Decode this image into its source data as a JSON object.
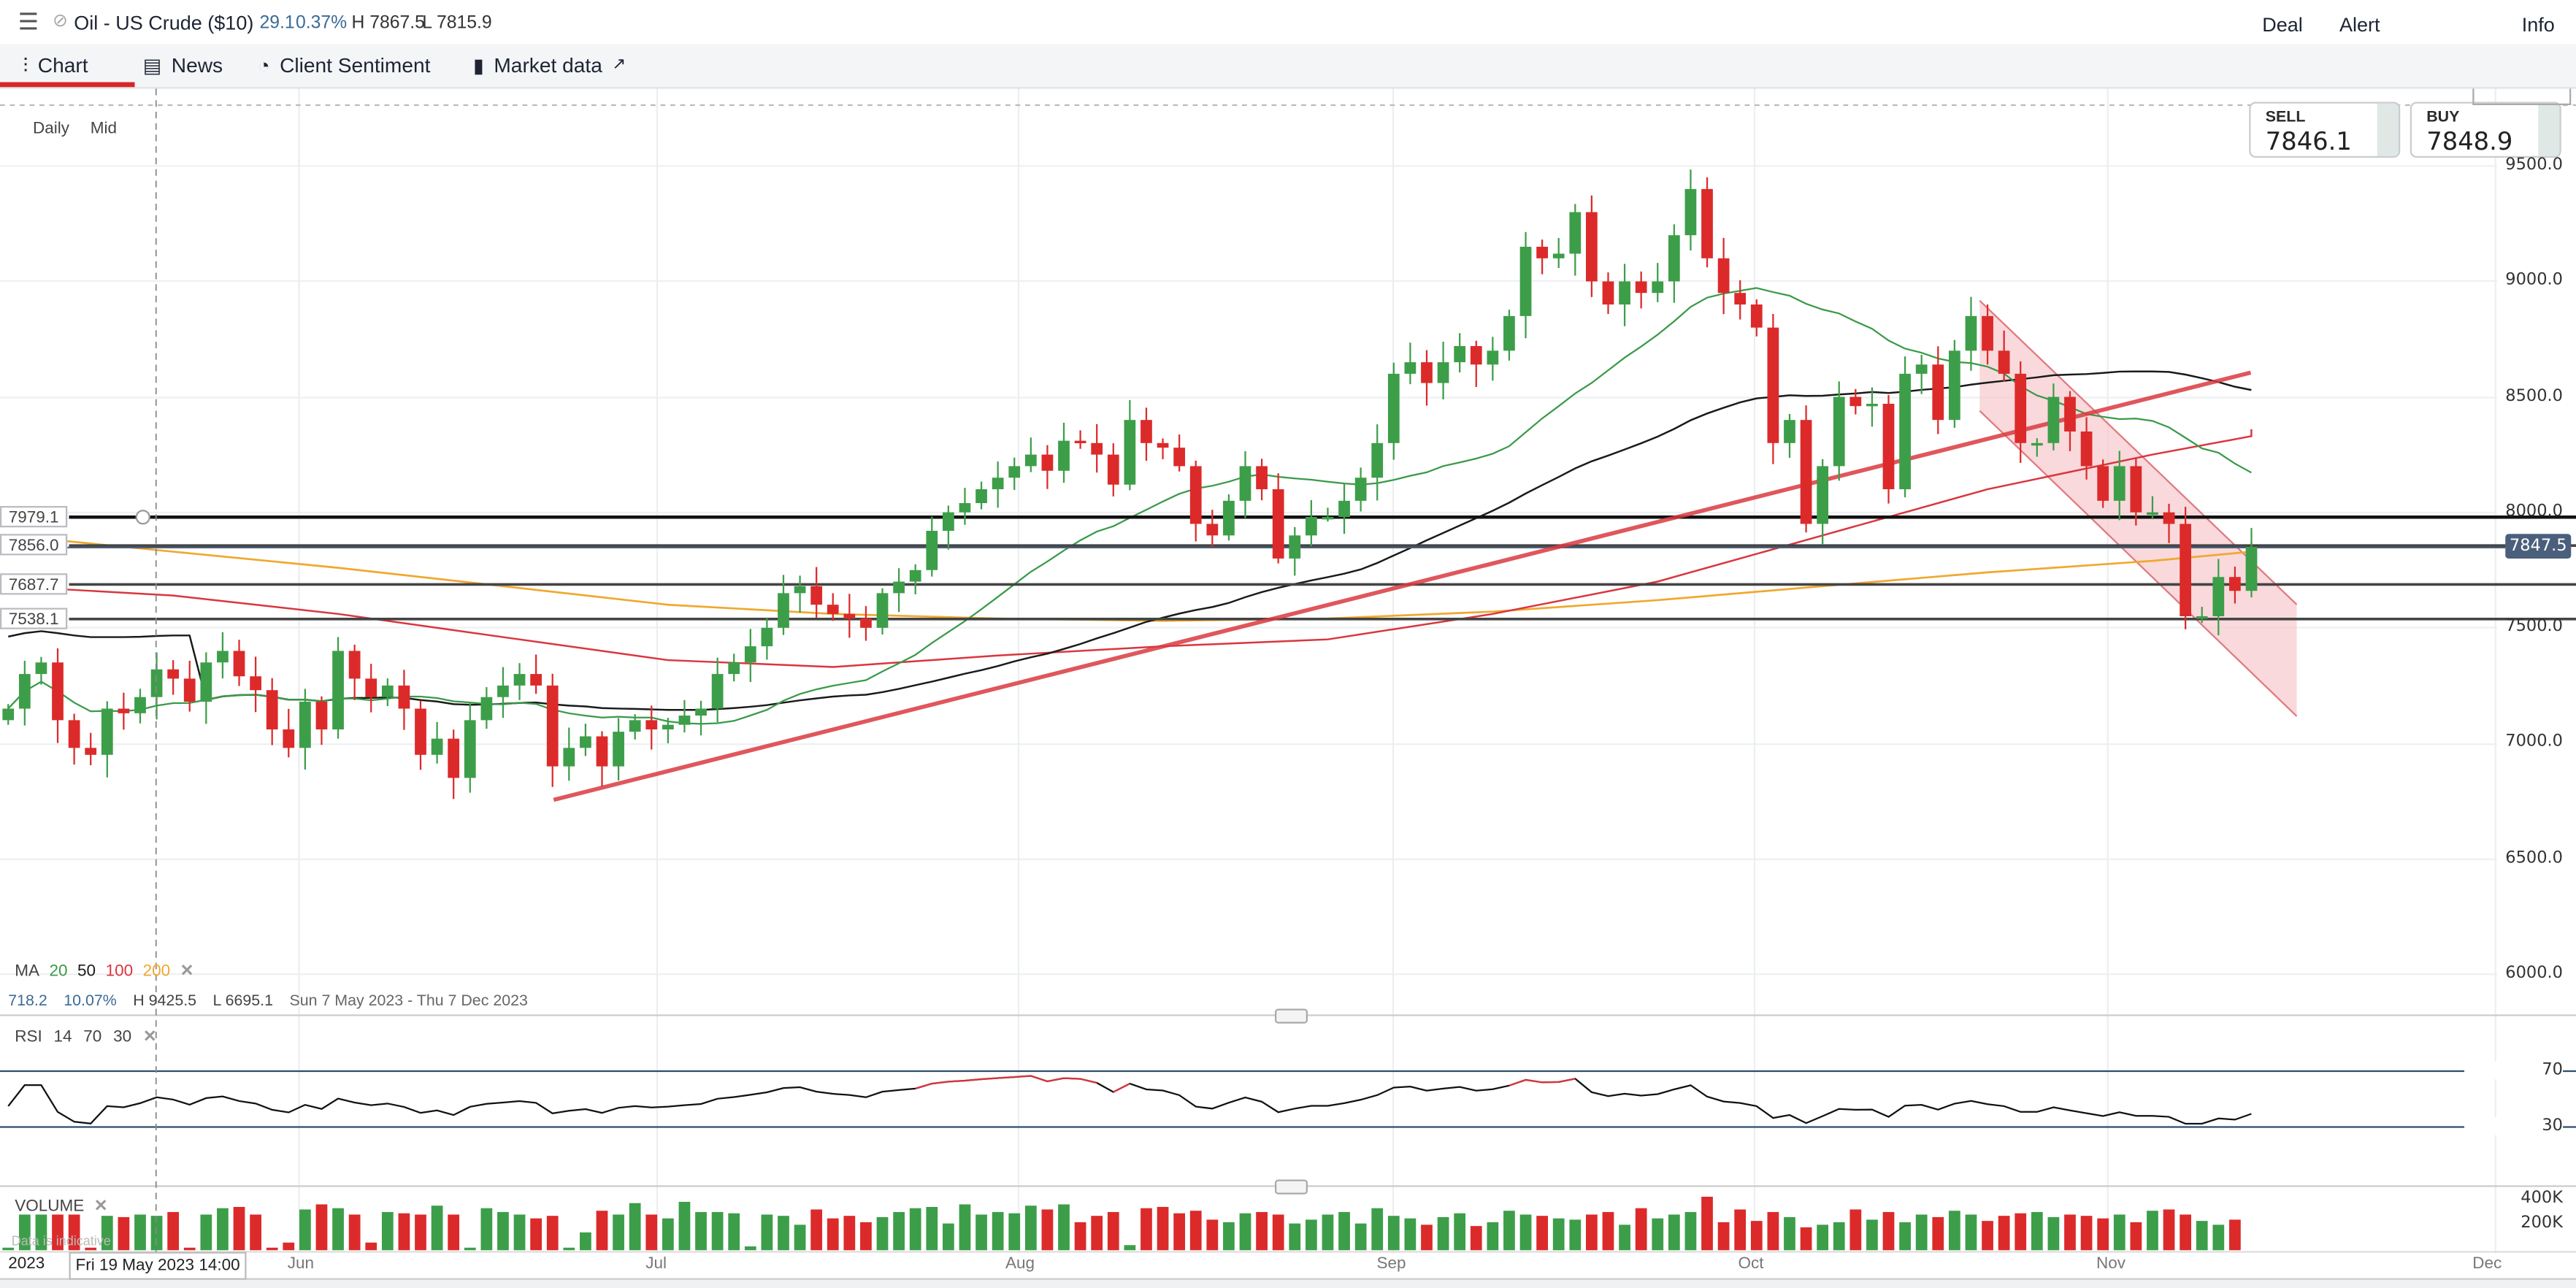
{
  "header": {
    "menu_icon": "hamburger-icon",
    "status_icon": "no-entry-icon",
    "instrument": "Oil - US Crude ($10)",
    "change": "29.1",
    "change_pct": "0.37%",
    "high": "H 7867.5",
    "low": "L 7815.9",
    "actions": [
      "Deal",
      "Alert",
      "Info"
    ]
  },
  "tabs": [
    {
      "label": "Chart",
      "icon": "candlestick-icon",
      "active": true
    },
    {
      "label": "News",
      "icon": "newspaper-icon"
    },
    {
      "label": "Client Sentiment",
      "icon": "circle-gauge-icon"
    },
    {
      "label": "Market data",
      "icon": "clipboard-chart-icon",
      "external_icon": "external-link-icon"
    }
  ],
  "chart_meta": {
    "interval": "Daily",
    "price_type": "Mid",
    "range_change": "718.2",
    "range_change_pct": "10.07%",
    "range_high": "H 9425.5",
    "range_low": "L 6695.1",
    "range_dates": "Sun 7 May 2023 - Thu 7 Dec 2023",
    "crosshair_label": "Fri 19 May 2023 14:00",
    "data_note": "Data is indicative"
  },
  "quotes": {
    "sell_label": "SELL",
    "sell": "7846.1",
    "buy_label": "BUY",
    "buy": "7848.9",
    "current_price": "7847.5"
  },
  "indicators": {
    "ma": {
      "label": "MA",
      "periods": [
        "20",
        "50",
        "100",
        "200"
      ],
      "colors": [
        "#3a9a48",
        "#1a1a1a",
        "#d9363e",
        "#f0a830"
      ],
      "close": "✕"
    },
    "rsi": {
      "label": "RSI",
      "params": [
        "14",
        "70",
        "30"
      ],
      "close": "✕"
    },
    "volume": {
      "label": "VOLUME",
      "close": "✕"
    }
  },
  "colors": {
    "up": "#3d9e49",
    "down": "#dc2a2a",
    "trendline": "#d9393f",
    "channel_fill": "#f6c9cc",
    "rsi_band": "#2e4d6e",
    "price_tag": "#4a5f7b"
  },
  "chart_data": [
    {
      "type": "candlestick",
      "xlabel": "",
      "ylabel": "",
      "ylim": [
        5850,
        9650
      ],
      "y_ticks": [
        "9500.0",
        "9000.0",
        "8500.0",
        "8000.0",
        "7500.0",
        "7000.0",
        "6500.0",
        "6000.0"
      ],
      "x_ticks": [
        "2023",
        "Jun",
        "Jul",
        "Aug",
        "Sep",
        "Oct",
        "Nov",
        "Dec"
      ],
      "grid": true,
      "close": [
        7150,
        7300,
        7350,
        7100,
        6980,
        6950,
        7150,
        7130,
        7200,
        7320,
        7280,
        7180,
        7350,
        7400,
        7290,
        7230,
        7060,
        6980,
        7180,
        7060,
        7400,
        7280,
        7200,
        7250,
        7150,
        6950,
        7020,
        6850,
        7100,
        7200,
        7250,
        7300,
        7250,
        6900,
        6980,
        7030,
        6900,
        7050,
        7100,
        7060,
        7080,
        7120,
        7150,
        7300,
        7350,
        7420,
        7500,
        7650,
        7680,
        7600,
        7560,
        7540,
        7500,
        7650,
        7700,
        7750,
        7920,
        8000,
        8040,
        8100,
        8150,
        8200,
        8250,
        8180,
        8310,
        8300,
        8250,
        8120,
        8400,
        8300,
        8280,
        8200,
        7950,
        7900,
        8050,
        8200,
        8100,
        7800,
        7900,
        7980,
        7980,
        8050,
        8150,
        8300,
        8600,
        8650,
        8560,
        8650,
        8720,
        8640,
        8700,
        8850,
        9150,
        9100,
        9120,
        9300,
        9000,
        8900,
        9000,
        8950,
        9000,
        9200,
        9400,
        9100,
        8950,
        8900,
        8800,
        8300,
        8400,
        7950,
        8200,
        8500,
        8460,
        8470,
        8100,
        8600,
        8640,
        8400,
        8700,
        8850,
        8700,
        8600,
        8300,
        8300,
        8500,
        8350,
        8200,
        8050,
        8200,
        8000,
        8000,
        7950,
        7550,
        7550,
        7720,
        7660,
        7850
      ],
      "ma100_sampled": [
        7680,
        7640,
        7560,
        7460,
        7360,
        7330,
        7380,
        7420,
        7450,
        7560,
        7700,
        7900,
        8100,
        8250,
        8330,
        8360
      ],
      "ma200_sampled": [
        7900,
        7830,
        7760,
        7680,
        7600,
        7560,
        7540,
        7530,
        7540,
        7570,
        7620,
        7680,
        7740,
        7790,
        7830,
        7870
      ],
      "horizontal_levels": [
        "7979.1",
        "7856.0",
        "7687.7",
        "7538.1"
      ],
      "trendline": {
        "from": 6755,
        "to": 8605
      },
      "channel": {
        "upper": [
          8917,
          7601
        ],
        "lower": [
          8440,
          7117
        ]
      }
    },
    {
      "type": "line",
      "name": "RSI",
      "y_ticks": [
        "70",
        "30"
      ],
      "ylim": [
        0,
        100
      ]
    },
    {
      "type": "bar",
      "name": "VOLUME",
      "y_ticks": [
        "400K",
        "200K"
      ],
      "values_k": [
        20,
        280,
        280,
        280,
        280,
        20,
        270,
        260,
        280,
        270,
        300,
        20,
        280,
        330,
        340,
        280,
        20,
        60,
        320,
        360,
        330,
        280,
        60,
        300,
        290,
        280,
        350,
        280,
        20,
        330,
        300,
        280,
        250,
        270,
        20,
        140,
        310,
        280,
        370,
        280,
        250,
        380,
        300,
        300,
        290,
        30,
        280,
        270,
        200,
        320,
        250,
        270,
        220,
        260,
        300,
        330,
        340,
        210,
        360,
        280,
        300,
        290,
        350,
        320,
        360,
        220,
        270,
        300,
        40,
        330,
        340,
        290,
        310,
        240,
        220,
        290,
        300,
        280,
        210,
        240,
        280,
        300,
        210,
        330,
        270,
        250,
        200,
        260,
        290,
        190,
        220,
        310,
        280,
        270,
        250,
        240,
        280,
        300,
        200,
        330,
        250,
        280,
        300,
        420,
        220,
        320,
        230,
        300,
        260,
        180,
        200,
        220,
        320,
        240,
        300,
        220,
        280,
        260,
        310,
        280,
        230,
        270,
        290,
        300,
        260,
        280,
        270,
        250,
        280,
        220,
        310,
        320,
        280,
        230,
        200,
        240
      ]
    }
  ]
}
